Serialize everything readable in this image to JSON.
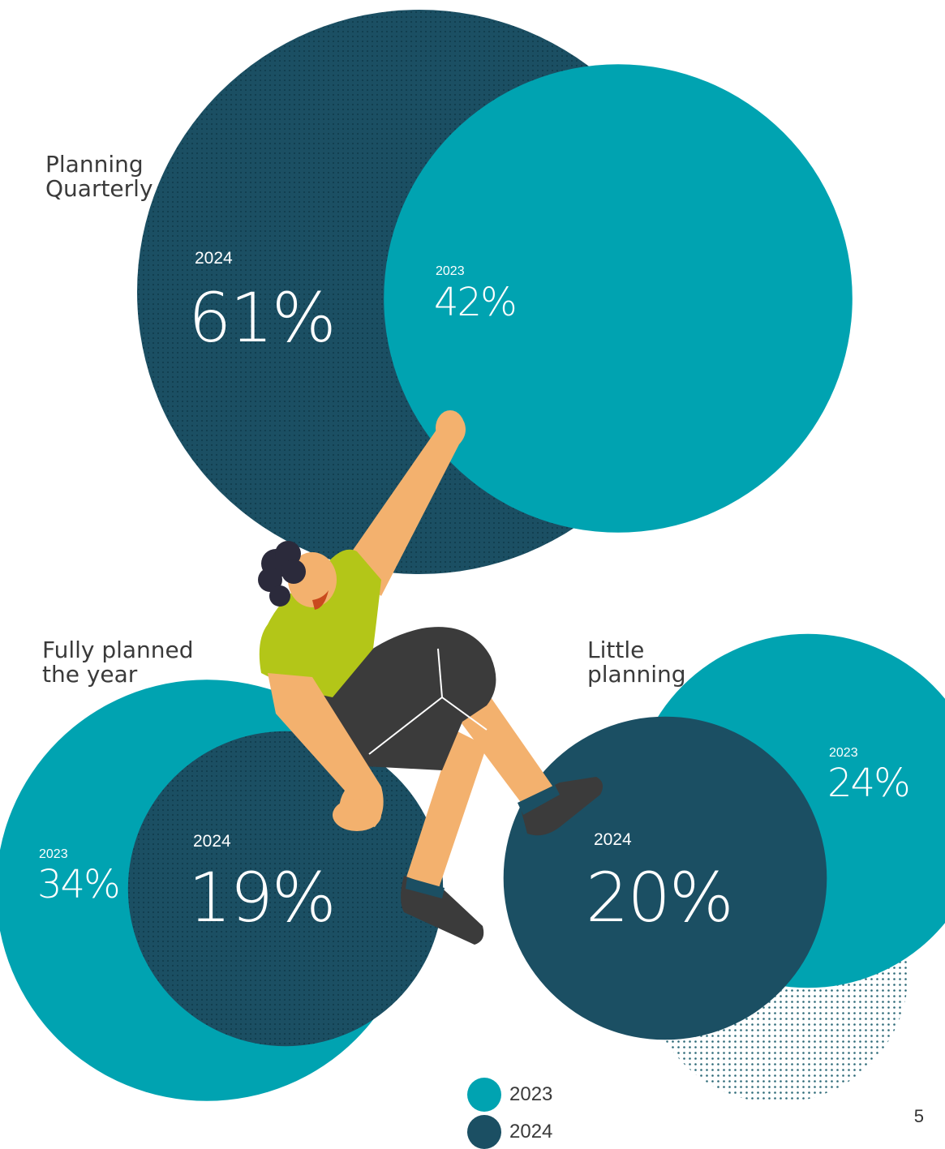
{
  "chart_data": [
    {
      "type": "bubble",
      "group": "Planning Quarterly",
      "series": [
        {
          "name": "2024",
          "value": 61,
          "label": "61%"
        },
        {
          "name": "2023",
          "value": 42,
          "label": "42%"
        }
      ]
    },
    {
      "type": "bubble",
      "group": "Fully planned the year",
      "series": [
        {
          "name": "2023",
          "value": 34,
          "label": "34%"
        },
        {
          "name": "2024",
          "value": 19,
          "label": "19%"
        }
      ]
    },
    {
      "type": "bubble",
      "group": "Little planning",
      "series": [
        {
          "name": "2023",
          "value": 24,
          "label": "24%"
        },
        {
          "name": "2024",
          "value": 20,
          "label": "20%"
        }
      ]
    }
  ],
  "labels": {
    "planning_quarterly": "Planning\nQuarterly",
    "fully_planned": "Fully planned\nthe year",
    "little_planning": "Little\nplanning"
  },
  "values": {
    "pq_2024_year": "2024",
    "pq_2024_pct": "61%",
    "pq_2023_year": "2023",
    "pq_2023_pct": "42%",
    "fp_2023_year": "2023",
    "fp_2023_pct": "34%",
    "fp_2024_year": "2024",
    "fp_2024_pct": "19%",
    "lp_2023_year": "2023",
    "lp_2023_pct": "24%",
    "lp_2024_year": "2024",
    "lp_2024_pct": "20%"
  },
  "legend": [
    {
      "label": "2023",
      "color": "#00a3b1"
    },
    {
      "label": "2024",
      "color": "#1b4f63"
    }
  ],
  "colors": {
    "color_2023": "#00a3b1",
    "color_2024": "#1b4f63",
    "shirt": "#b3c618",
    "skin": "#f3b16e",
    "shorts": "#3b3b3b",
    "hair": "#2b2a3b"
  },
  "page_number": "5"
}
